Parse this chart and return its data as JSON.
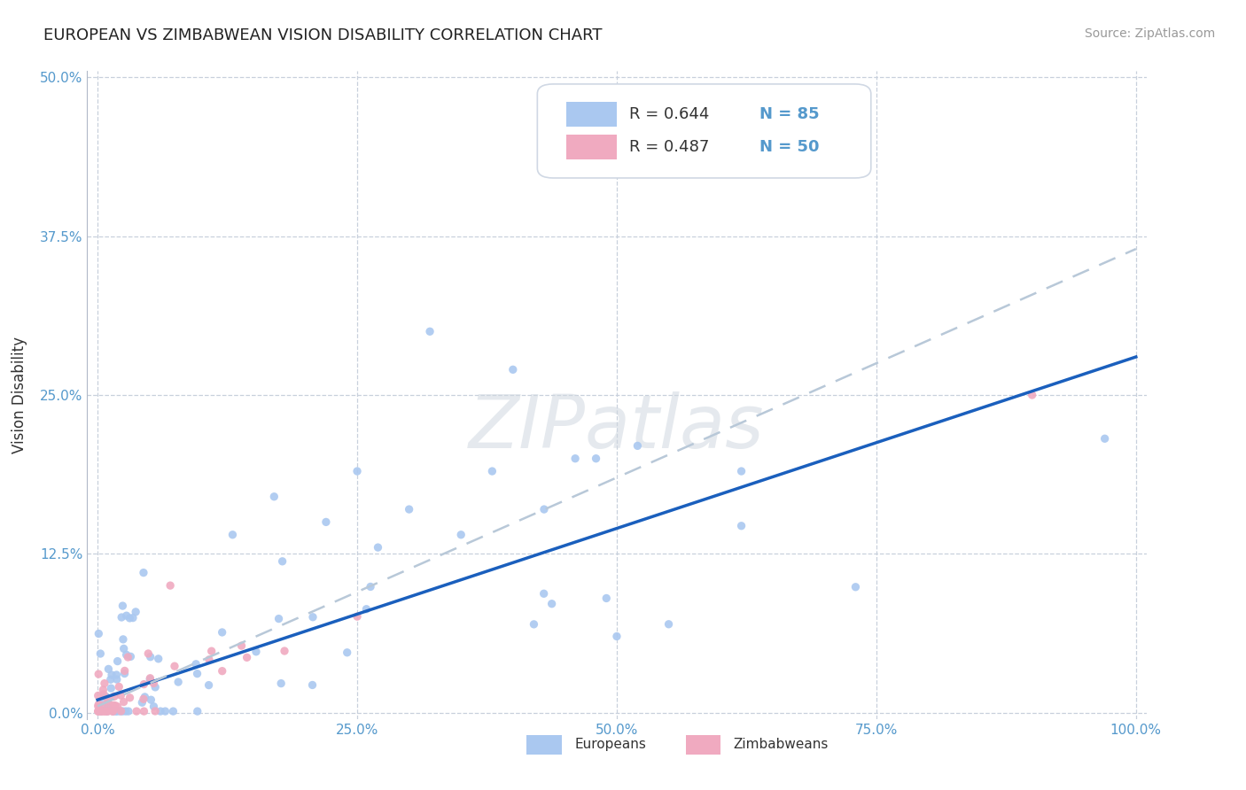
{
  "title": "EUROPEAN VS ZIMBABWEAN VISION DISABILITY CORRELATION CHART",
  "source": "Source: ZipAtlas.com",
  "ylabel": "Vision Disability",
  "xlim": [
    -0.01,
    1.01
  ],
  "ylim": [
    -0.005,
    0.505
  ],
  "xticks": [
    0.0,
    0.25,
    0.5,
    0.75,
    1.0
  ],
  "xtick_labels": [
    "0.0%",
    "25.0%",
    "50.0%",
    "75.0%",
    "100.0%"
  ],
  "yticks": [
    0.0,
    0.125,
    0.25,
    0.375,
    0.5
  ],
  "ytick_labels": [
    "0.0%",
    "12.5%",
    "25.0%",
    "37.5%",
    "50.0%"
  ],
  "european_color": "#aac8f0",
  "zimbabwean_color": "#f0aac0",
  "european_line_color": "#1a5fbd",
  "zimbabwean_line_color": "#b8c8d8",
  "background_color": "#ffffff",
  "grid_color": "#c8d0dc",
  "legend_R_european": "R = 0.644",
  "legend_N_european": "N = 85",
  "legend_R_zimbabwean": "R = 0.487",
  "legend_N_zimbabwean": "N = 50",
  "watermark": "ZIPatlas",
  "eu_line_start": 0.0,
  "eu_line_end_y": 0.27,
  "zw_line_start": 0.0,
  "zw_line_end_y": 0.36,
  "title_fontsize": 13,
  "source_fontsize": 10,
  "tick_fontsize": 11,
  "ylabel_fontsize": 12,
  "legend_fontsize": 13,
  "watermark_fontsize": 60,
  "dot_size": 45
}
